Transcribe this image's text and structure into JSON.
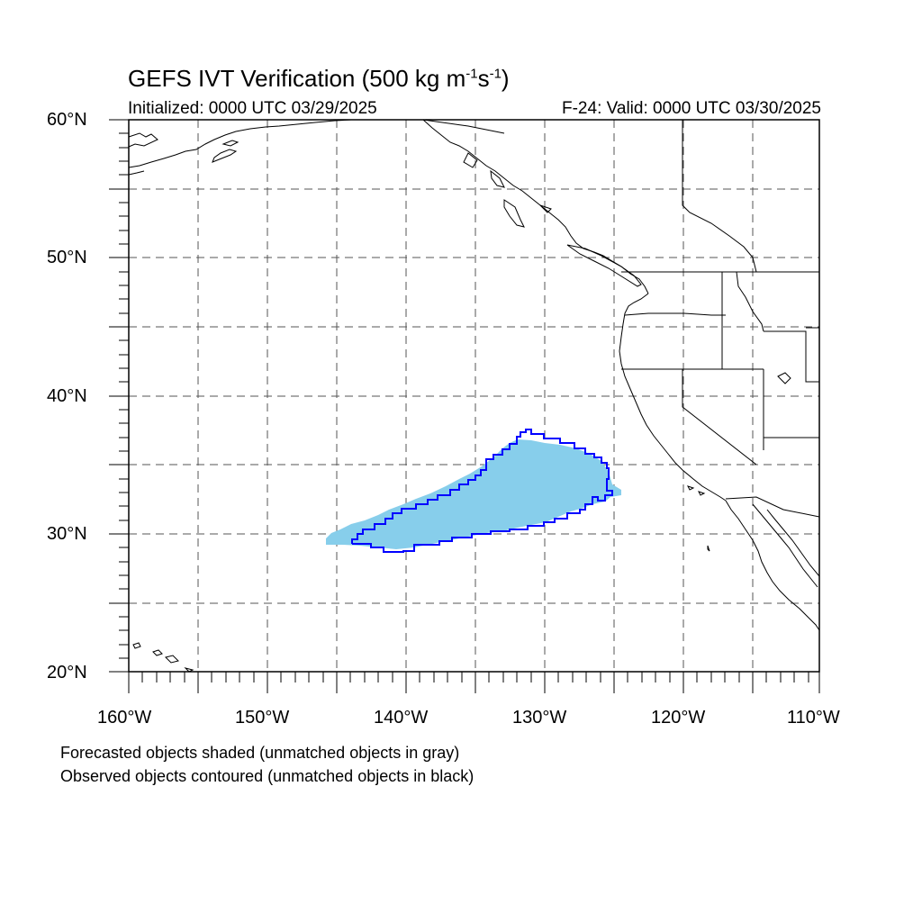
{
  "title": {
    "prefix": "GEFS IVT Verification (500 kg m",
    "exp1": "-1",
    "mid": "s",
    "exp2": "-1",
    "suffix": ")"
  },
  "initialized": "Initialized: 0000 UTC 03/29/2025",
  "valid": "F-24: Valid: 0000 UTC 03/30/2025",
  "lat_labels": [
    "60°N",
    "50°N",
    "40°N",
    "30°N",
    "20°N"
  ],
  "lon_labels": [
    "160°W",
    "150°W",
    "140°W",
    "130°W",
    "120°W",
    "110°W"
  ],
  "notes": [
    "Forecasted objects shaded (unmatched objects in gray)",
    "Observed objects contoured (unmatched objects in black)"
  ],
  "colors": {
    "forecast_fill": "#87ceeb",
    "observed_contour": "#0000ff",
    "coastline": "#000000",
    "grid": "#555555"
  },
  "map": {
    "lon_range": [
      -160,
      -110
    ],
    "lat_range": [
      20,
      60
    ],
    "grid_spacing_deg": 5,
    "grid_style": "dashed"
  }
}
